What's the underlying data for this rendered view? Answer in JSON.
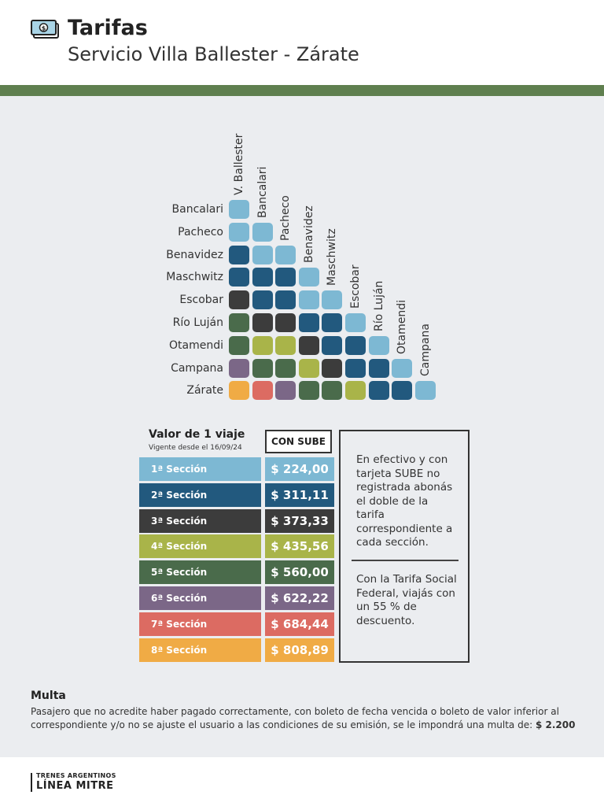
{
  "header": {
    "title": "Tarifas",
    "subtitle": "Servicio Villa Ballester - Zárate",
    "icon": "money-bill-icon"
  },
  "matrix": {
    "columns": [
      "V. Ballester",
      "Bancalari",
      "Pacheco",
      "Benavidez",
      "Maschwitz",
      "Escobar",
      "Río Luján",
      "Otamendi",
      "Campana"
    ],
    "rows": [
      {
        "name": "Bancalari",
        "sections": [
          1
        ]
      },
      {
        "name": "Pacheco",
        "sections": [
          1,
          1
        ]
      },
      {
        "name": "Benavidez",
        "sections": [
          2,
          1,
          1
        ]
      },
      {
        "name": "Maschwitz",
        "sections": [
          2,
          2,
          2,
          1
        ]
      },
      {
        "name": "Escobar",
        "sections": [
          3,
          2,
          2,
          1,
          1
        ]
      },
      {
        "name": "Río Luján",
        "sections": [
          5,
          3,
          3,
          2,
          2,
          1
        ]
      },
      {
        "name": "Otamendi",
        "sections": [
          5,
          4,
          4,
          3,
          2,
          2,
          1
        ]
      },
      {
        "name": "Campana",
        "sections": [
          6,
          5,
          5,
          4,
          3,
          2,
          2,
          1
        ]
      },
      {
        "name": "Zárate",
        "sections": [
          8,
          7,
          6,
          5,
          5,
          4,
          2,
          2,
          1
        ]
      }
    ]
  },
  "fares": {
    "title": "Valor de 1 viaje",
    "valid_from": "Vigente desde el 16/09/24",
    "sube_header": "CON SUBE",
    "sections": [
      {
        "label": "1ª Sección",
        "price": "$ 224,00",
        "color": "#7db8d3"
      },
      {
        "label": "2ª Sección",
        "price": "$ 311,11",
        "color": "#22597e"
      },
      {
        "label": "3ª Sección",
        "price": "$ 373,33",
        "color": "#3c3c3c"
      },
      {
        "label": "4ª Sección",
        "price": "$ 435,56",
        "color": "#a9b449"
      },
      {
        "label": "5ª Sección",
        "price": "$ 560,00",
        "color": "#4a6b4b"
      },
      {
        "label": "6ª Sección",
        "price": "$ 622,22",
        "color": "#7b6787"
      },
      {
        "label": "7ª Sección",
        "price": "$ 684,44",
        "color": "#dc6b62"
      },
      {
        "label": "8ª Sección",
        "price": "$ 808,89",
        "color": "#f0ab45"
      }
    ]
  },
  "info": {
    "cash_note": "En efectivo y con tarjeta SUBE no registrada abonás el doble de la tarifa correspondiente a cada sección.",
    "social_note": "Con la Tarifa Social Federal, viajás con un 55 % de descuento."
  },
  "multa": {
    "title": "Multa",
    "text": "Pasajero que no acredite haber pagado correctamente, con boleto de fecha vencida o boleto de valor inferior al correspondiente y/o no se ajuste el usuario a las condiciones de su emisión, se le impondrá una multa de:",
    "amount": "$ 2.200"
  },
  "footer": {
    "org": "TRENES ARGENTINOS",
    "line": "LÍNEA MITRE"
  }
}
